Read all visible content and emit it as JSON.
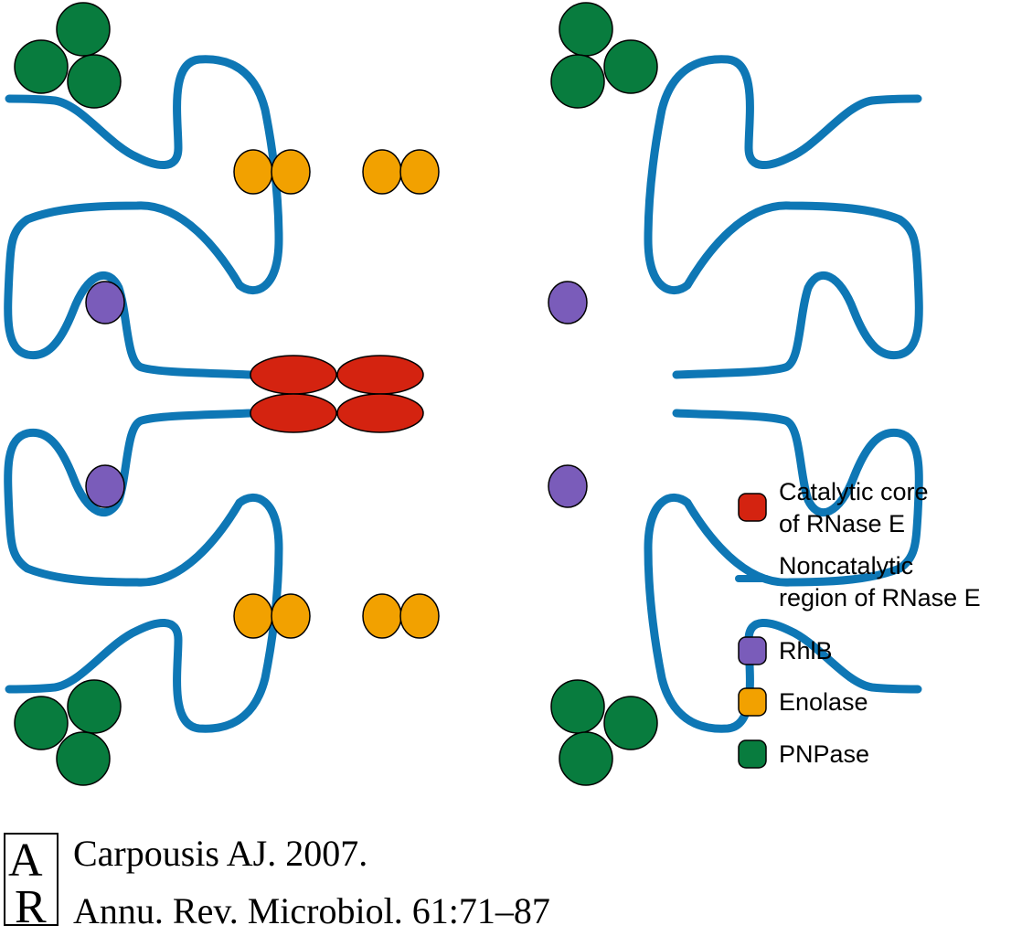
{
  "legend": {
    "items": [
      {
        "key": "catalytic",
        "lines": [
          "Catalytic core",
          "of RNase E"
        ],
        "color": "#d42310",
        "shape": "rounded-square"
      },
      {
        "key": "noncatalytic",
        "lines": [
          "Noncatalytic",
          "region of RNase E"
        ],
        "color": "#0e77b5",
        "shape": "line"
      },
      {
        "key": "rhlb",
        "lines": [
          "RhlB"
        ],
        "color": "#7a5cba",
        "shape": "rounded-square"
      },
      {
        "key": "enolase",
        "lines": [
          "Enolase"
        ],
        "color": "#f2a100",
        "shape": "rounded-square"
      },
      {
        "key": "pnpase",
        "lines": [
          "PNPase"
        ],
        "color": "#087c3e",
        "shape": "rounded-square"
      }
    ]
  },
  "citation": {
    "line1": "Carpousis AJ. 2007.",
    "line2": "Annu. Rev. Microbiol. 61:71–87",
    "logo_letters": [
      "A",
      "R"
    ]
  },
  "colors": {
    "catalytic": "#d42310",
    "noncatalytic": "#0e77b5",
    "rhlb": "#7a5cba",
    "enolase": "#f2a100",
    "pnpase": "#087c3e"
  }
}
